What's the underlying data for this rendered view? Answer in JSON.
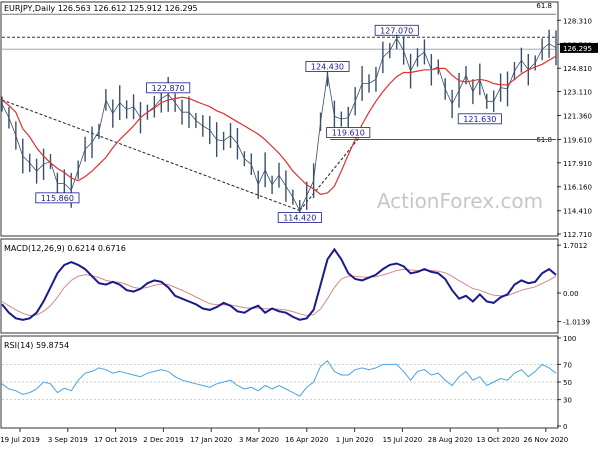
{
  "chart_data": [
    {
      "type": "line",
      "panel": "price",
      "title": "EURJPY,Daily  126.563 126.612 125.912 126.295",
      "ylim": [
        112.71,
        129.5
      ],
      "y_ticks": [
        "128.310",
        "126.560",
        "124.810",
        "123.110",
        "121.360",
        "119.610",
        "117.910",
        "116.160",
        "114.410",
        "112.710"
      ],
      "last_price": "126.295",
      "series": [
        {
          "values": [
            122.5,
            122.1,
            121.6,
            120.4,
            119.8,
            119.0,
            118.4,
            117.9,
            117.5,
            117.2,
            116.8,
            116.6,
            116.9,
            117.3,
            117.8,
            118.3,
            119.0,
            119.6,
            120.1,
            120.6,
            121.2,
            121.6,
            121.9,
            122.3,
            122.5,
            122.6,
            122.7,
            122.6,
            122.4,
            122.2,
            122.0,
            121.7,
            121.5,
            121.2,
            120.9,
            120.6,
            120.3,
            120.0,
            119.6,
            119.1,
            118.6,
            118.0,
            117.3,
            116.8,
            116.3,
            116.0,
            115.6,
            115.7,
            116.2,
            117.3,
            118.5,
            119.6,
            120.7,
            121.6,
            122.4,
            123.1,
            123.7,
            124.2,
            124.5,
            124.5,
            124.6,
            124.7,
            124.7,
            124.8,
            124.8,
            124.3,
            123.9,
            123.8,
            123.9,
            124.0,
            123.9,
            123.7,
            123.6,
            123.6,
            124.0,
            124.4,
            124.7,
            124.9,
            125.1,
            125.4,
            125.7
          ]
        },
        {
          "values": [
            122.2,
            121.2,
            119.9,
            118.4,
            117.9,
            117.3,
            117.8,
            118.0,
            116.4,
            116.4,
            115.9,
            117.4,
            118.9,
            119.4,
            120.2,
            122.5,
            121.5,
            122.3,
            121.8,
            122.0,
            121.2,
            121.6,
            122.0,
            122.6,
            122.9,
            122.3,
            121.6,
            121.6,
            121.0,
            120.6,
            120.3,
            119.6,
            119.5,
            119.9,
            119.3,
            118.2,
            117.8,
            116.3,
            117.4,
            116.3,
            117.0,
            116.2,
            115.4,
            114.4,
            115.5,
            116.6,
            120.9,
            124.4,
            121.3,
            121.1,
            121.2,
            122.4,
            123.7,
            123.7,
            124.0,
            125.6,
            126.1,
            127.0,
            126.1,
            124.6,
            125.6,
            126.0,
            124.7,
            124.9,
            123.3,
            122.2,
            123.2,
            124.3,
            123.1,
            124.0,
            122.4,
            122.4,
            123.4,
            123.3,
            124.6,
            125.4,
            124.7,
            125.2,
            126.2,
            126.6,
            126.3
          ]
        }
      ],
      "annotations": [
        {
          "label": "115.860",
          "x": 8,
          "y": 115.86
        },
        {
          "label": "122.870",
          "x": 24,
          "y": 122.87
        },
        {
          "label": "114.420",
          "x": 43,
          "y": 114.42
        },
        {
          "label": "124.430",
          "x": 47,
          "y": 124.43
        },
        {
          "label": "119.610",
          "x": 50,
          "y": 119.61
        },
        {
          "label": "127.070",
          "x": 57,
          "y": 127.07
        },
        {
          "label": "121.630",
          "x": 69,
          "y": 121.63
        }
      ],
      "fib_labels": [
        "61.8",
        "61.8"
      ],
      "fib_levels": [
        128.75,
        119.61
      ],
      "resistance_level": 127.07
    },
    {
      "type": "line",
      "panel": "macd",
      "title": "MACD(12,26,9) 0.6214 0.6716",
      "ylim": [
        -1.35,
        1.85
      ],
      "y_ticks": [
        "1.7012",
        "0.00",
        "-1.0139"
      ],
      "series": [
        {
          "values": [
            -0.4,
            -0.7,
            -0.9,
            -0.95,
            -0.9,
            -0.7,
            -0.3,
            0.2,
            0.7,
            1.0,
            1.1,
            1.0,
            0.85,
            0.6,
            0.35,
            0.3,
            0.4,
            0.3,
            0.1,
            0.05,
            0.15,
            0.35,
            0.45,
            0.4,
            0.2,
            -0.1,
            -0.2,
            -0.3,
            -0.4,
            -0.55,
            -0.6,
            -0.5,
            -0.35,
            -0.45,
            -0.65,
            -0.7,
            -0.55,
            -0.45,
            -0.7,
            -0.55,
            -0.65,
            -0.7,
            -0.85,
            -0.95,
            -0.9,
            -0.6,
            0.3,
            1.2,
            1.55,
            1.2,
            0.7,
            0.5,
            0.45,
            0.55,
            0.65,
            0.85,
            1.0,
            1.05,
            0.95,
            0.7,
            0.75,
            0.85,
            0.75,
            0.7,
            0.5,
            0.1,
            -0.2,
            -0.1,
            -0.3,
            -0.05,
            -0.3,
            -0.35,
            -0.15,
            -0.05,
            0.3,
            0.45,
            0.35,
            0.4,
            0.7,
            0.85,
            0.65
          ]
        },
        {
          "values": [
            -0.3,
            -0.45,
            -0.6,
            -0.72,
            -0.8,
            -0.78,
            -0.65,
            -0.45,
            -0.15,
            0.2,
            0.45,
            0.6,
            0.65,
            0.62,
            0.55,
            0.45,
            0.4,
            0.38,
            0.3,
            0.2,
            0.16,
            0.2,
            0.27,
            0.32,
            0.3,
            0.2,
            0.1,
            -0.02,
            -0.14,
            -0.26,
            -0.38,
            -0.42,
            -0.42,
            -0.43,
            -0.47,
            -0.52,
            -0.54,
            -0.53,
            -0.56,
            -0.56,
            -0.58,
            -0.6,
            -0.66,
            -0.74,
            -0.8,
            -0.77,
            -0.56,
            -0.2,
            0.2,
            0.5,
            0.6,
            0.6,
            0.57,
            0.56,
            0.58,
            0.64,
            0.72,
            0.8,
            0.84,
            0.82,
            0.8,
            0.81,
            0.8,
            0.78,
            0.72,
            0.6,
            0.44,
            0.3,
            0.16,
            0.1,
            0.0,
            -0.08,
            -0.1,
            -0.09,
            0.0,
            0.1,
            0.16,
            0.22,
            0.34,
            0.46,
            0.6
          ]
        }
      ]
    },
    {
      "type": "line",
      "panel": "rsi",
      "title": "RSI(14) 59.8754",
      "ylim": [
        0,
        100
      ],
      "y_ticks": [
        "100",
        "70",
        "50",
        "30",
        "0"
      ],
      "series": [
        {
          "values": [
            48,
            42,
            40,
            36,
            38,
            42,
            50,
            48,
            38,
            43,
            40,
            52,
            60,
            62,
            66,
            64,
            60,
            62,
            60,
            58,
            56,
            60,
            62,
            64,
            62,
            56,
            52,
            50,
            48,
            46,
            44,
            48,
            50,
            52,
            46,
            42,
            44,
            40,
            46,
            42,
            46,
            42,
            38,
            34,
            44,
            50,
            68,
            74,
            62,
            58,
            58,
            64,
            66,
            64,
            66,
            70,
            70,
            70,
            62,
            52,
            62,
            64,
            58,
            60,
            52,
            46,
            56,
            62,
            52,
            56,
            46,
            50,
            54,
            52,
            60,
            64,
            56,
            62,
            70,
            66,
            60
          ]
        }
      ]
    }
  ],
  "x_tick_labels": [
    "19 Jul 2019",
    "3 Sep 2019",
    "17 Oct 2019",
    "2 Dec 2019",
    "17 Jan 2020",
    "3 Mar 2020",
    "16 Apr 2020",
    "1 Jun 2020",
    "15 Jul 2020",
    "28 Aug 2020",
    "13 Oct 2020",
    "26 Nov 2020"
  ],
  "watermark": "ActionForex.com",
  "colors": {
    "price": "#3a4f6b",
    "ma": "#e03030",
    "macd": "#1a1a8c",
    "signal": "#d08a8a",
    "rsi": "#4aa3e0",
    "box": "#1a1a8c",
    "grid": "#bfbfbf"
  }
}
